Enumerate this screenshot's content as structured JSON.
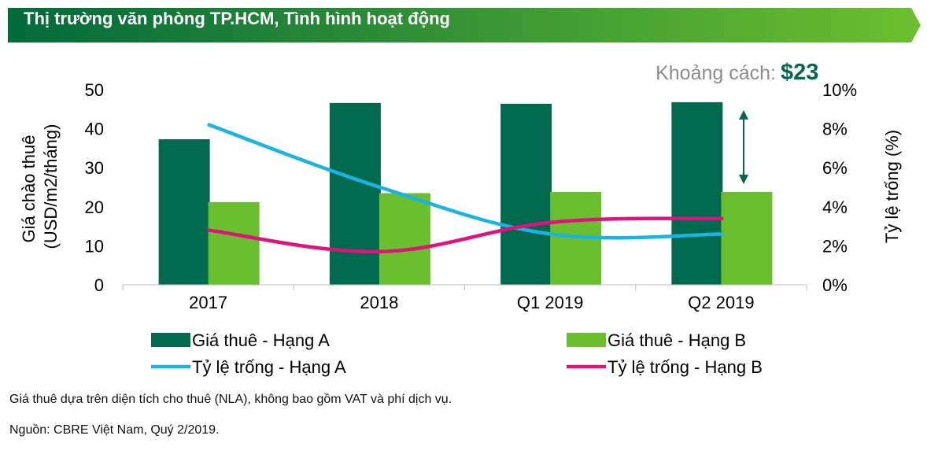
{
  "header": {
    "title": "Thị trường văn phòng TP.HCM, Tình hình hoạt động"
  },
  "gap": {
    "label": "Khoảng cách:",
    "value": "$23"
  },
  "notes": {
    "line1": "Giá thuê dựa trên diện tích cho thuê (NLA), không bao gồm VAT và phí dịch vụ.",
    "line2": "Nguồn: CBRE Việt Nam, Quý 2/2019."
  },
  "colors": {
    "banner_start": "#006a3b",
    "banner_end": "#6cbf2e",
    "grade_a_bar": "#006a4e",
    "grade_b_bar": "#6abf2e",
    "vacancy_a": "#19b4e4",
    "vacancy_b": "#e2117e",
    "arrow": "#006a4e",
    "gap_value": "#006a4e",
    "gap_label": "#8c8c8c"
  },
  "chart_data": {
    "type": "bar",
    "categories": [
      "2017",
      "2018",
      "Q1 2019",
      "Q2 2019"
    ],
    "ylabel": "Giá chào thuê\n(USD/m2/tháng)",
    "y2label": "Tỷ lệ trống (%)",
    "ylim": [
      0,
      50
    ],
    "yticks": [
      "0",
      "10",
      "20",
      "30",
      "40",
      "50"
    ],
    "y2lim": [
      0,
      10
    ],
    "y2ticks": [
      "0%",
      "2%",
      "4%",
      "6%",
      "8%",
      "10%"
    ],
    "grid": false,
    "legend_position": "bottom",
    "series": [
      {
        "name": "Giá thuê - Hạng A",
        "kind": "bar",
        "axis": "left",
        "values": [
          37.3,
          46.6,
          46.4,
          46.8
        ]
      },
      {
        "name": "Giá thuê - Hạng B",
        "kind": "bar",
        "axis": "left",
        "values": [
          21.2,
          23.5,
          23.8,
          23.8
        ]
      },
      {
        "name": "Tỷ lệ trống - Hạng A",
        "kind": "line",
        "axis": "right",
        "values": [
          8.2,
          5.0,
          2.6,
          2.6
        ]
      },
      {
        "name": "Tỷ lệ trống - Hạng B",
        "kind": "line",
        "axis": "right",
        "values": [
          2.8,
          1.7,
          3.2,
          3.4
        ]
      }
    ]
  }
}
